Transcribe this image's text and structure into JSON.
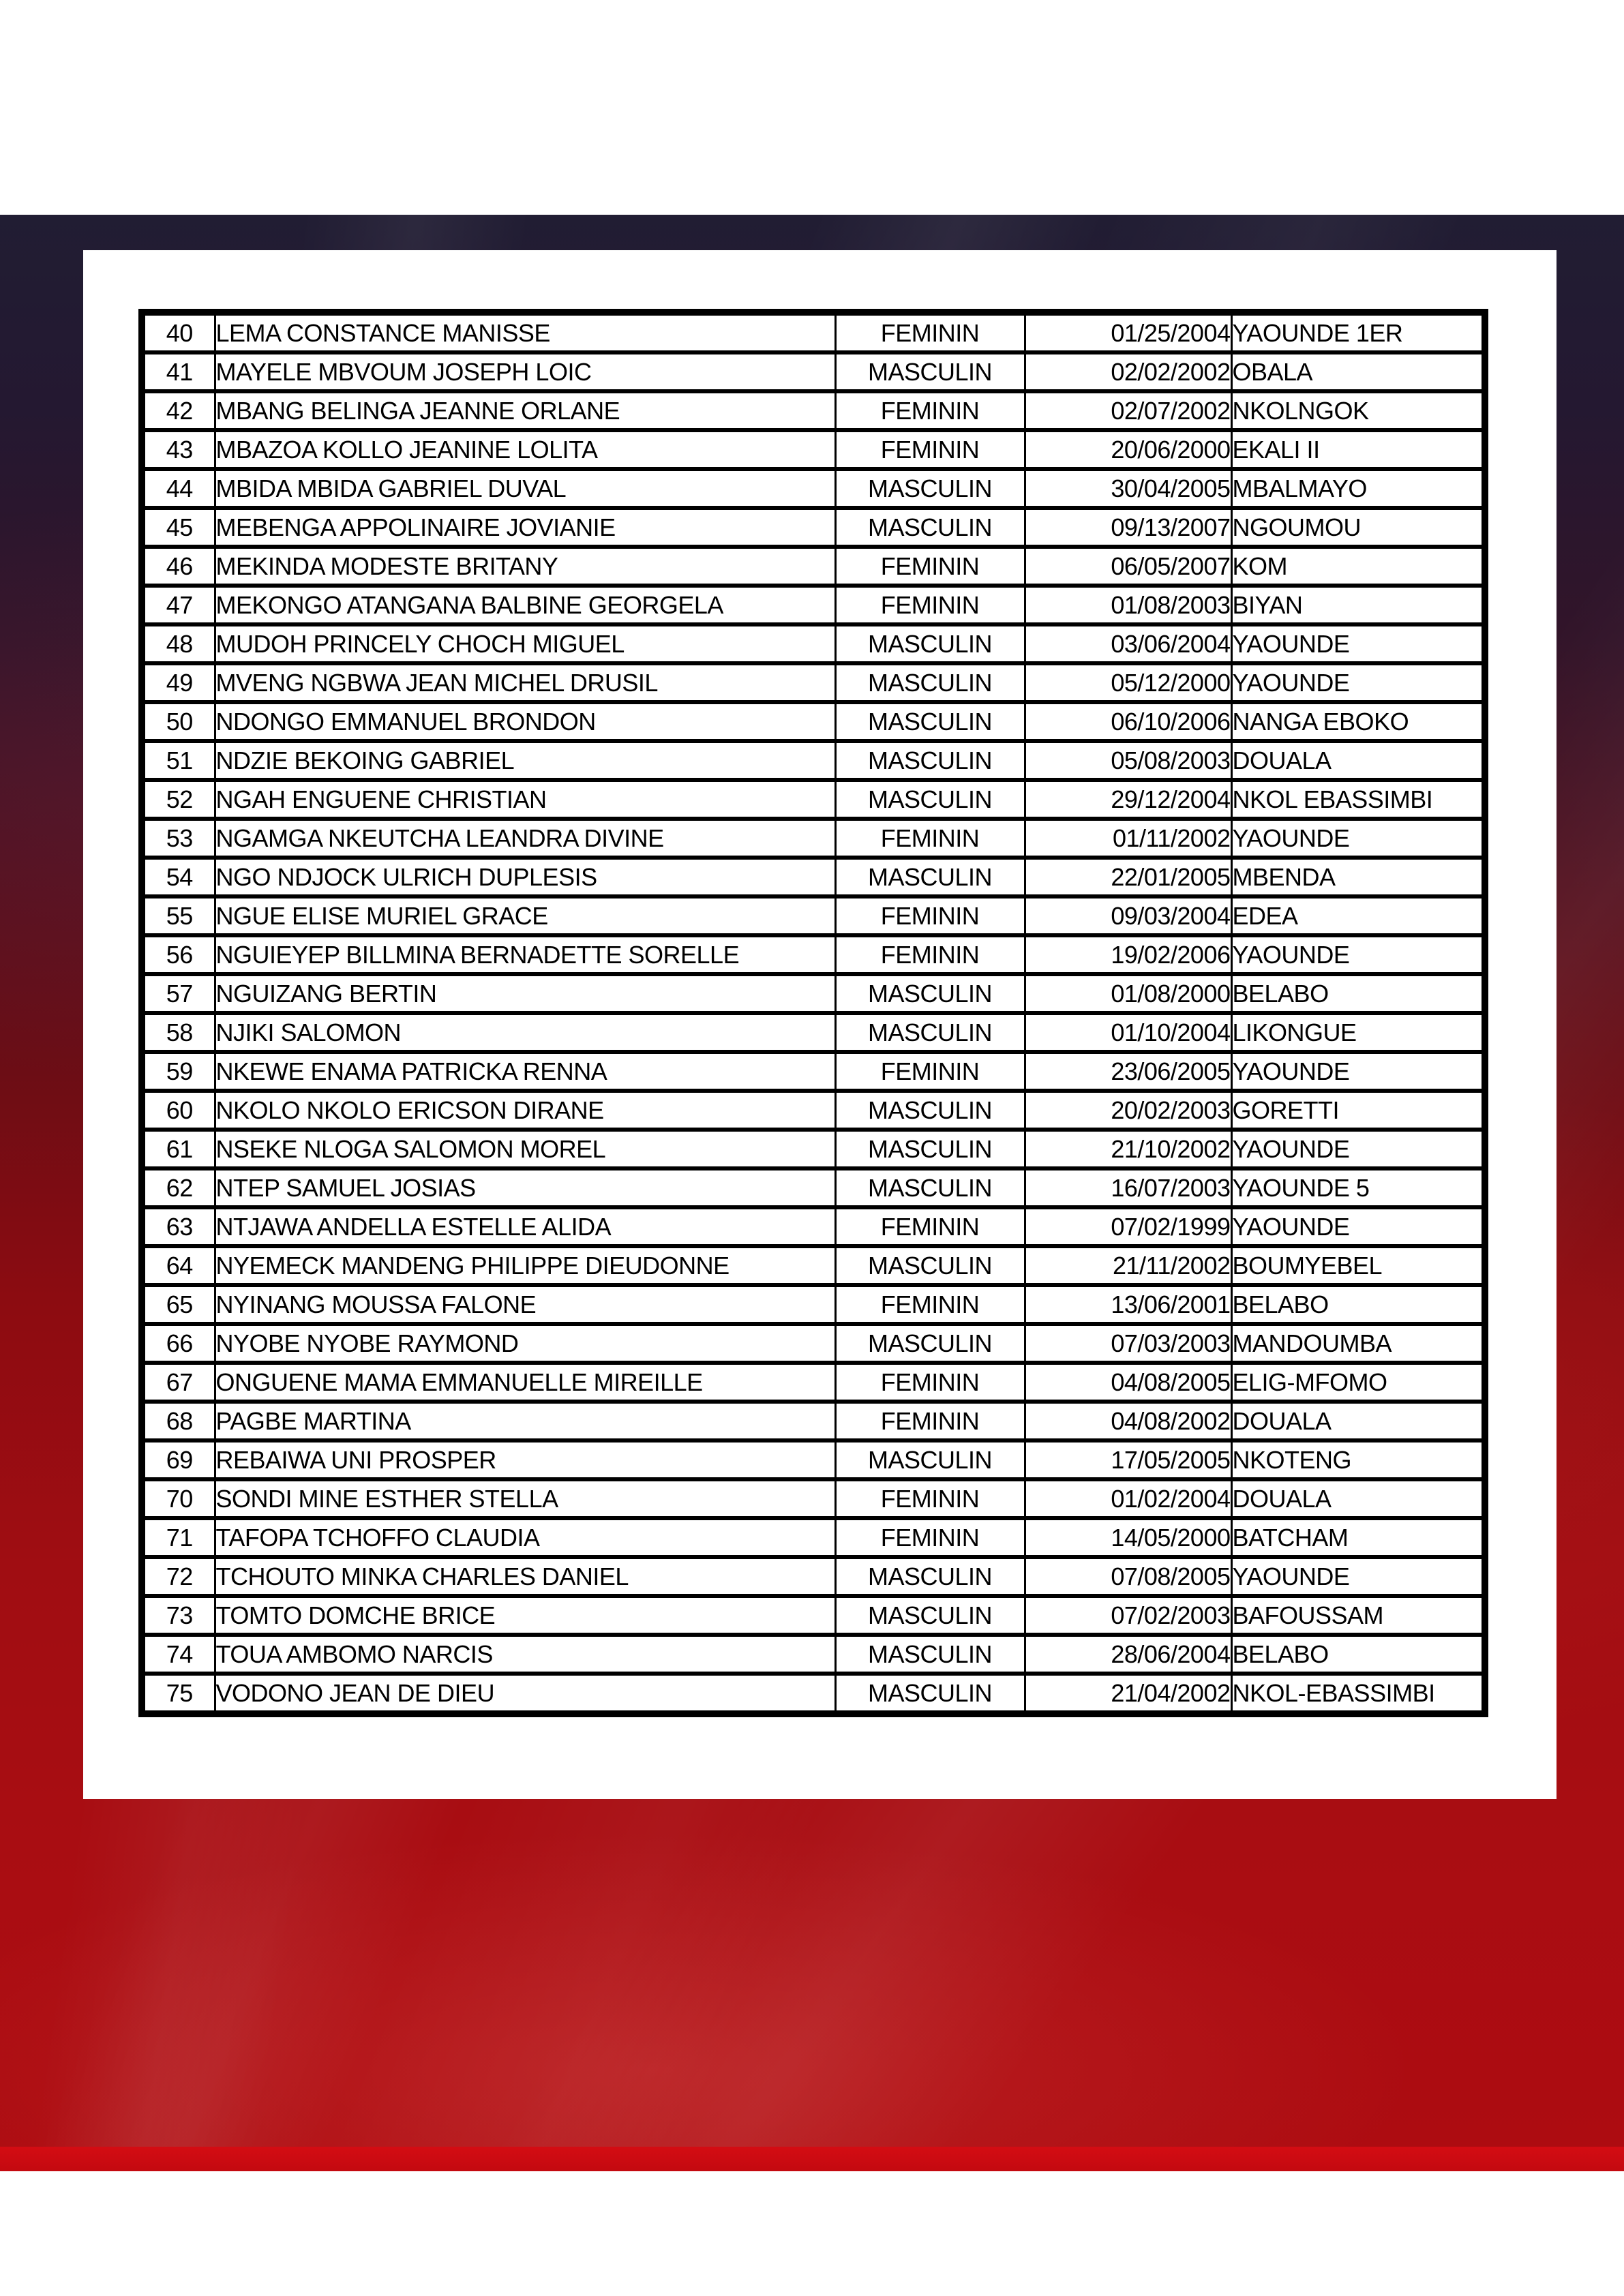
{
  "colors": {
    "navy": "#211d33",
    "red_mid": "#a00d12",
    "red_band": "#c30a10",
    "page": "#ffffff",
    "table_border": "#000000"
  },
  "document": {
    "table": {
      "rows": [
        {
          "number": "40",
          "name": "LEMA CONSTANCE MANISSE",
          "gender": "FEMININ",
          "birth_date": "01/25/2004",
          "place": "YAOUNDE 1ER"
        },
        {
          "number": "41",
          "name": "MAYELE MBVOUM JOSEPH LOIC",
          "gender": "MASCULIN",
          "birth_date": "02/02/2002",
          "place": "OBALA"
        },
        {
          "number": "42",
          "name": "MBANG BELINGA JEANNE ORLANE",
          "gender": "FEMININ",
          "birth_date": "02/07/2002",
          "place": "NKOLNGOK"
        },
        {
          "number": "43",
          "name": "MBAZOA KOLLO JEANINE LOLITA",
          "gender": "FEMININ",
          "birth_date": "20/06/2000",
          "place": "EKALI II"
        },
        {
          "number": "44",
          "name": "MBIDA MBIDA GABRIEL DUVAL",
          "gender": "MASCULIN",
          "birth_date": "30/04/2005",
          "place": "MBALMAYO"
        },
        {
          "number": "45",
          "name": "MEBENGA APPOLINAIRE JOVIANIE",
          "gender": "MASCULIN",
          "birth_date": "09/13/2007",
          "place": "NGOUMOU"
        },
        {
          "number": "46",
          "name": "MEKINDA MODESTE BRITANY",
          "gender": "FEMININ",
          "birth_date": "06/05/2007",
          "place": "KOM"
        },
        {
          "number": "47",
          "name": "MEKONGO ATANGANA  BALBINE  GEORGELA",
          "gender": "FEMININ",
          "birth_date": "01/08/2003",
          "place": "BIYAN"
        },
        {
          "number": "48",
          "name": "MUDOH PRINCELY CHOCH MIGUEL",
          "gender": "MASCULIN",
          "birth_date": "03/06/2004",
          "place": "YAOUNDE"
        },
        {
          "number": "49",
          "name": "MVENG NGBWA JEAN MICHEL DRUSIL",
          "gender": "MASCULIN",
          "birth_date": "05/12/2000",
          "place": "YAOUNDE"
        },
        {
          "number": "50",
          "name": "NDONGO EMMANUEL BRONDON",
          "gender": "MASCULIN",
          "birth_date": "06/10/2006",
          "place": "NANGA EBOKO"
        },
        {
          "number": "51",
          "name": "NDZIE BEKOING GABRIEL",
          "gender": "MASCULIN",
          "birth_date": "05/08/2003",
          "place": "DOUALA"
        },
        {
          "number": "52",
          "name": "NGAH ENGUENE CHRISTIAN",
          "gender": "MASCULIN",
          "birth_date": "29/12/2004",
          "place": "NKOL EBASSIMBI"
        },
        {
          "number": "53",
          "name": "NGAMGA NKEUTCHA LEANDRA DIVINE",
          "gender": "FEMININ",
          "birth_date": "01/11/2002",
          "place": "YAOUNDE"
        },
        {
          "number": "54",
          "name": "NGO NDJOCK ULRICH DUPLESIS",
          "gender": "MASCULIN",
          "birth_date": "22/01/2005",
          "place": "MBENDA"
        },
        {
          "number": "55",
          "name": "NGUE ELISE MURIEL GRACE",
          "gender": "FEMININ",
          "birth_date": "09/03/2004",
          "place": "EDEA"
        },
        {
          "number": "56",
          "name": "NGUIEYEP BILLMINA BERNADETTE SORELLE",
          "gender": "FEMININ",
          "birth_date": "19/02/2006",
          "place": "YAOUNDE"
        },
        {
          "number": "57",
          "name": "NGUIZANG BERTIN",
          "gender": "MASCULIN",
          "birth_date": "01/08/2000",
          "place": "BELABO"
        },
        {
          "number": "58",
          "name": "NJIKI SALOMON",
          "gender": "MASCULIN",
          "birth_date": "01/10/2004",
          "place": "LIKONGUE"
        },
        {
          "number": "59",
          "name": "NKEWE ENAMA PATRICKA RENNA",
          "gender": "FEMININ",
          "birth_date": "23/06/2005",
          "place": "YAOUNDE"
        },
        {
          "number": "60",
          "name": "NKOLO NKOLO ERICSON DIRANE",
          "gender": "MASCULIN",
          "birth_date": "20/02/2003",
          "place": "GORETTI"
        },
        {
          "number": "61",
          "name": "NSEKE NLOGA SALOMON MOREL",
          "gender": "MASCULIN",
          "birth_date": "21/10/2002",
          "place": "YAOUNDE"
        },
        {
          "number": "62",
          "name": "NTEP SAMUEL JOSIAS",
          "gender": "MASCULIN",
          "birth_date": "16/07/2003",
          "place": "YAOUNDE 5"
        },
        {
          "number": "63",
          "name": "NTJAWA ANDELLA ESTELLE ALIDA",
          "gender": "FEMININ",
          "birth_date": "07/02/1999",
          "place": "YAOUNDE"
        },
        {
          "number": "64",
          "name": "NYEMECK MANDENG PHILIPPE DIEUDONNE",
          "gender": "MASCULIN",
          "birth_date": "21/11/2002",
          "place": "BOUMYEBEL"
        },
        {
          "number": "65",
          "name": "NYINANG MOUSSA FALONE",
          "gender": "FEMININ",
          "birth_date": "13/06/2001",
          "place": "BELABO"
        },
        {
          "number": "66",
          "name": "NYOBE NYOBE RAYMOND",
          "gender": "MASCULIN",
          "birth_date": "07/03/2003",
          "place": "MANDOUMBA"
        },
        {
          "number": "67",
          "name": "ONGUENE MAMA EMMANUELLE MIREILLE",
          "gender": "FEMININ",
          "birth_date": "04/08/2005",
          "place": "ELIG-MFOMO"
        },
        {
          "number": "68",
          "name": "PAGBE MARTINA",
          "gender": "FEMININ",
          "birth_date": "04/08/2002",
          "place": "DOUALA"
        },
        {
          "number": "69",
          "name": "REBAIWA UNI PROSPER",
          "gender": "MASCULIN",
          "birth_date": "17/05/2005",
          "place": "NKOTENG"
        },
        {
          "number": "70",
          "name": "SONDI MINE ESTHER STELLA",
          "gender": "FEMININ",
          "birth_date": "01/02/2004",
          "place": "DOUALA"
        },
        {
          "number": "71",
          "name": "TAFOPA TCHOFFO CLAUDIA",
          "gender": "FEMININ",
          "birth_date": "14/05/2000",
          "place": "BATCHAM"
        },
        {
          "number": "72",
          "name": "TCHOUTO MINKA CHARLES DANIEL",
          "gender": "MASCULIN",
          "birth_date": "07/08/2005",
          "place": "YAOUNDE"
        },
        {
          "number": "73",
          "name": "TOMTO DOMCHE BRICE",
          "gender": "MASCULIN",
          "birth_date": "07/02/2003",
          "place": "BAFOUSSAM"
        },
        {
          "number": "74",
          "name": "TOUA AMBOMO NARCIS",
          "gender": "MASCULIN",
          "birth_date": "28/06/2004",
          "place": "BELABO"
        },
        {
          "number": "75",
          "name": "VODONO JEAN DE DIEU",
          "gender": "MASCULIN",
          "birth_date": "21/04/2002",
          "place": "NKOL-EBASSIMBI"
        }
      ]
    }
  }
}
